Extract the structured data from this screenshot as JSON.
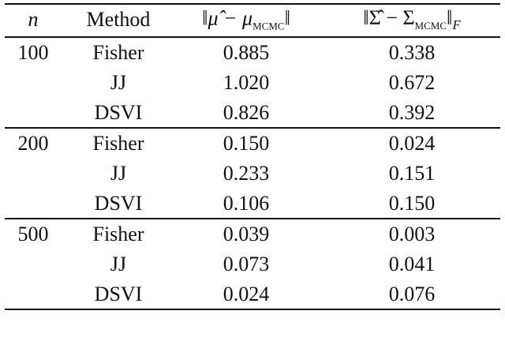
{
  "table": {
    "header": [
      [
        {
          "text": "n",
          "style": "italic"
        }
      ],
      [
        {
          "text": "Method"
        }
      ],
      [
        {
          "text": "‖"
        },
        {
          "text": "μ̂ − μ",
          "style": "italic"
        },
        {
          "text": "MCMC",
          "style": "sub"
        },
        {
          "text": "‖"
        }
      ],
      [
        {
          "text": "‖Σ̂ − Σ"
        },
        {
          "text": "MCMC",
          "style": "sub"
        },
        {
          "text": "‖"
        },
        {
          "text": "F",
          "style": "sub-italic"
        }
      ]
    ],
    "groups": [
      {
        "n": "100",
        "rows": [
          [
            "Fisher",
            "0.885",
            "0.338"
          ],
          [
            "JJ",
            "1.020",
            "0.672"
          ],
          [
            "DSVI",
            "0.826",
            "0.392"
          ]
        ]
      },
      {
        "n": "200",
        "rows": [
          [
            "Fisher",
            "0.150",
            "0.024"
          ],
          [
            "JJ",
            "0.233",
            "0.151"
          ],
          [
            "DSVI",
            "0.106",
            "0.150"
          ]
        ]
      },
      {
        "n": "500",
        "rows": [
          [
            "Fisher",
            "0.039",
            "0.003"
          ],
          [
            "JJ",
            "0.073",
            "0.041"
          ],
          [
            "DSVI",
            "0.024",
            "0.076"
          ]
        ]
      }
    ]
  }
}
